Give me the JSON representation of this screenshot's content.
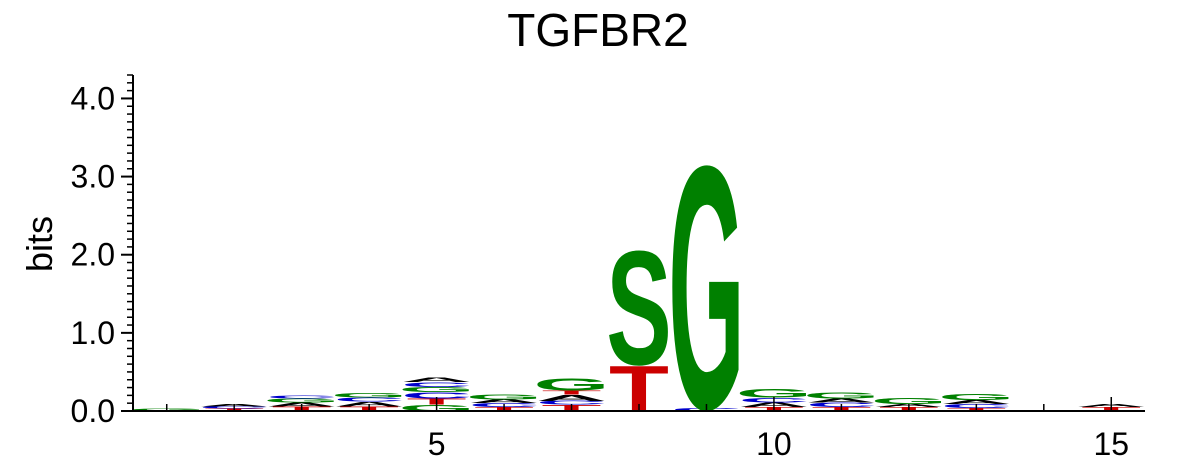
{
  "chart_data": {
    "type": "sequence-logo",
    "title": "TGFBR2",
    "xlabel": "",
    "ylabel": "bits",
    "ylim": [
      0,
      4.3
    ],
    "xlim": [
      0.5,
      15.5
    ],
    "y_ticks": [
      "0.0",
      "1.0",
      "2.0",
      "3.0",
      "4.0"
    ],
    "x_ticks": [
      "5",
      "10",
      "15"
    ],
    "grid": false,
    "colors": {
      "G": "#008000",
      "T": "#cc0000",
      "C": "#0000cc",
      "A": "#000000",
      "S": "#008000"
    },
    "positions": [
      {
        "pos": 1,
        "letters": [
          {
            "base": "G",
            "bits": 0.03
          }
        ]
      },
      {
        "pos": 2,
        "letters": [
          {
            "base": "T",
            "bits": 0.03
          },
          {
            "base": "C",
            "bits": 0.03
          },
          {
            "base": "A",
            "bits": 0.03
          }
        ]
      },
      {
        "pos": 3,
        "letters": [
          {
            "base": "T",
            "bits": 0.06
          },
          {
            "base": "A",
            "bits": 0.05
          },
          {
            "base": "G",
            "bits": 0.05
          },
          {
            "base": "C",
            "bits": 0.04
          }
        ]
      },
      {
        "pos": 4,
        "letters": [
          {
            "base": "T",
            "bits": 0.06
          },
          {
            "base": "A",
            "bits": 0.06
          },
          {
            "base": "C",
            "bits": 0.05
          },
          {
            "base": "G",
            "bits": 0.06
          }
        ]
      },
      {
        "pos": 5,
        "letters": [
          {
            "base": "G",
            "bits": 0.08
          },
          {
            "base": "T",
            "bits": 0.08
          },
          {
            "base": "C",
            "bits": 0.08
          },
          {
            "base": "G",
            "bits": 0.07
          },
          {
            "base": "C",
            "bits": 0.06
          },
          {
            "base": "A",
            "bits": 0.06
          }
        ]
      },
      {
        "pos": 6,
        "letters": [
          {
            "base": "T",
            "bits": 0.05
          },
          {
            "base": "C",
            "bits": 0.05
          },
          {
            "base": "A",
            "bits": 0.05
          },
          {
            "base": "G",
            "bits": 0.07
          }
        ]
      },
      {
        "pos": 7,
        "letters": [
          {
            "base": "T",
            "bits": 0.08
          },
          {
            "base": "C",
            "bits": 0.05
          },
          {
            "base": "A",
            "bits": 0.08
          },
          {
            "base": "T",
            "bits": 0.05
          },
          {
            "base": "G",
            "bits": 0.16
          }
        ]
      },
      {
        "pos": 8,
        "letters": [
          {
            "base": "T",
            "bits": 0.6
          },
          {
            "base": "S",
            "bits": 1.5
          }
        ]
      },
      {
        "pos": 9,
        "letters": [
          {
            "base": "C",
            "bits": 0.04
          },
          {
            "base": "G",
            "bits": 3.2
          }
        ]
      },
      {
        "pos": 10,
        "letters": [
          {
            "base": "T",
            "bits": 0.05
          },
          {
            "base": "A",
            "bits": 0.06
          },
          {
            "base": "C",
            "bits": 0.06
          },
          {
            "base": "G",
            "bits": 0.11
          }
        ]
      },
      {
        "pos": 11,
        "letters": [
          {
            "base": "T",
            "bits": 0.05
          },
          {
            "base": "C",
            "bits": 0.06
          },
          {
            "base": "A",
            "bits": 0.05
          },
          {
            "base": "G",
            "bits": 0.08
          }
        ]
      },
      {
        "pos": 12,
        "letters": [
          {
            "base": "T",
            "bits": 0.05
          },
          {
            "base": "A",
            "bits": 0.04
          },
          {
            "base": "G",
            "bits": 0.08
          }
        ]
      },
      {
        "pos": 13,
        "letters": [
          {
            "base": "T",
            "bits": 0.04
          },
          {
            "base": "C",
            "bits": 0.05
          },
          {
            "base": "A",
            "bits": 0.05
          },
          {
            "base": "G",
            "bits": 0.08
          }
        ]
      },
      {
        "pos": 14,
        "letters": []
      },
      {
        "pos": 15,
        "letters": [
          {
            "base": "T",
            "bits": 0.05
          },
          {
            "base": "A",
            "bits": 0.04
          }
        ]
      }
    ]
  }
}
